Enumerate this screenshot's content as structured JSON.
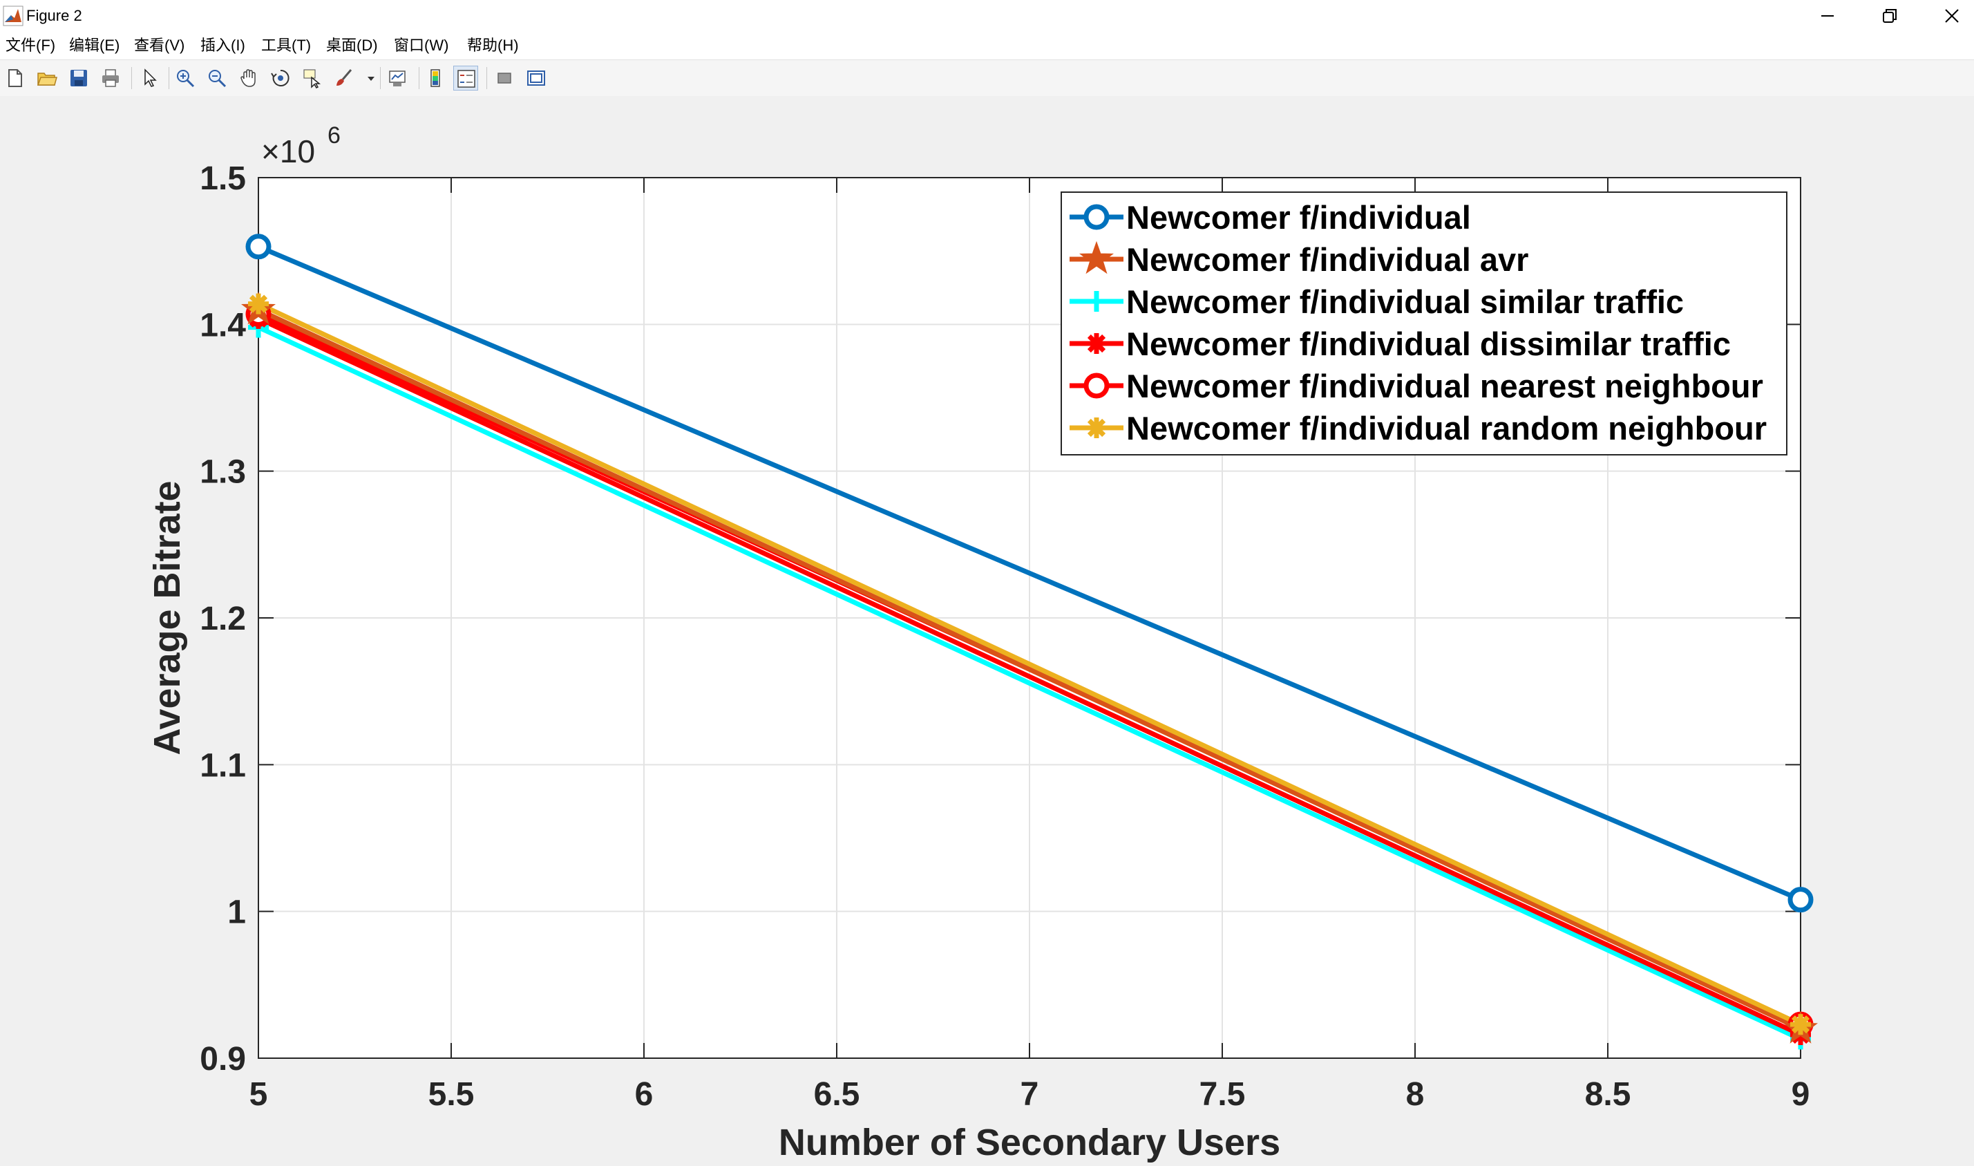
{
  "window": {
    "title": "Figure 2",
    "controls": [
      "minimize",
      "restore",
      "close"
    ]
  },
  "menu": {
    "items": [
      "文件(F)",
      "编辑(E)",
      "查看(V)",
      "插入(I)",
      "工具(T)",
      "桌面(D)",
      "窗口(W)",
      "帮助(H)"
    ]
  },
  "toolbar": {
    "icons": [
      "new-figure-icon",
      "open-file-icon",
      "save-icon",
      "print-icon",
      "pointer-icon",
      "zoom-in-icon",
      "zoom-out-icon",
      "pan-hand-icon",
      "rotate-3d-icon",
      "data-cursor-icon",
      "brush-icon",
      "link-plot-icon",
      "colorbar-icon",
      "legend-icon",
      "hide-plot-tools-icon",
      "show-plot-tools-icon"
    ]
  },
  "chart_data": {
    "type": "line",
    "title": "",
    "xlabel": "Number of Secondary Users",
    "ylabel": "Average Bitrate",
    "y_exponent_label": "×10",
    "y_exponent": "6",
    "xlim": [
      5,
      9
    ],
    "ylim": [
      0.9,
      1.5
    ],
    "xticks": [
      "5",
      "5.5",
      "6",
      "6.5",
      "7",
      "7.5",
      "8",
      "8.5",
      "9"
    ],
    "yticks": [
      "0.9",
      "1",
      "1.1",
      "1.2",
      "1.3",
      "1.4",
      "1.5"
    ],
    "grid": true,
    "legend_position": "top-right",
    "x": [
      5,
      9
    ],
    "series": [
      {
        "name": "Newcomer f/individual",
        "values": [
          1.453,
          1.008
        ],
        "color": "#0072BD",
        "marker": "circle"
      },
      {
        "name": "Newcomer f/individual avr",
        "values": [
          1.41,
          0.92
        ],
        "color": "#D95319",
        "marker": "star"
      },
      {
        "name": "Newcomer f/individual similar traffic",
        "values": [
          1.398,
          0.913
        ],
        "color": "#00FFFF",
        "marker": "plus"
      },
      {
        "name": "Newcomer f/individual dissimilar traffic",
        "values": [
          1.404,
          0.916
        ],
        "color": "#FF0000",
        "marker": "asterisk"
      },
      {
        "name": "Newcomer f/individual nearest neighbour",
        "values": [
          1.407,
          0.923
        ],
        "color": "#FF0000",
        "marker": "circle"
      },
      {
        "name": "Newcomer f/individual random neighbour",
        "values": [
          1.414,
          0.923
        ],
        "color": "#EDB120",
        "marker": "asterisk"
      }
    ]
  }
}
